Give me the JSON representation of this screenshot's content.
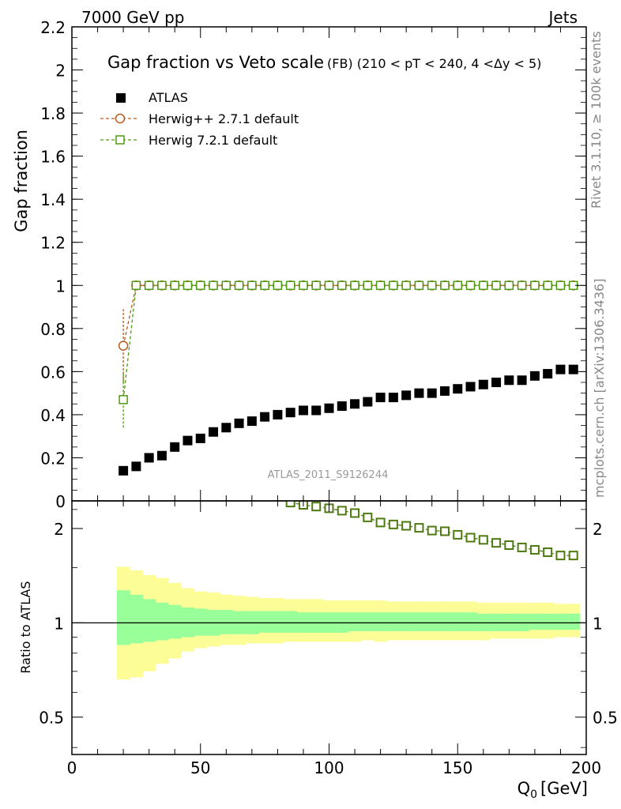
{
  "header": {
    "left": "7000 GeV pp",
    "right": "Jets"
  },
  "side_text": {
    "top": "Rivet 3.1.10, ≥ 100k events",
    "bottom": "mcplots.cern.ch [arXiv:1306.3436]"
  },
  "chart_data": [
    {
      "type": "scatter",
      "panel": "main",
      "title": "Gap fraction vs Veto scale",
      "subtitle": "(FB) (210 < pT < 240, 4 <Δy < 5)",
      "xlabel": "Q",
      "xlabel_sub": "0",
      "xlabel_unit": "[GeV]",
      "ylabel": "Gap fraction",
      "xlim": [
        0,
        200
      ],
      "ylim": [
        0,
        2.2
      ],
      "yticks": [
        0,
        0.2,
        0.4,
        0.6,
        0.8,
        1,
        1.2,
        1.4,
        1.6,
        1.8,
        2,
        2.2
      ],
      "ytick_labels": [
        "0",
        "0.2",
        "0.4",
        "0.6",
        "0.8",
        "1",
        "1.2",
        "1.4",
        "1.6",
        "1.8",
        "2",
        "2.2"
      ],
      "watermark": "ATLAS_2011_S9126244",
      "legend_position": "top-left",
      "series": [
        {
          "name": "ATLAS",
          "color": "#000000",
          "marker": "filled-square",
          "x": [
            20,
            25,
            30,
            35,
            40,
            45,
            50,
            55,
            60,
            65,
            70,
            75,
            80,
            85,
            90,
            95,
            100,
            105,
            110,
            115,
            120,
            125,
            130,
            135,
            140,
            145,
            150,
            155,
            160,
            165,
            170,
            175,
            180,
            185,
            190,
            195
          ],
          "y": [
            0.14,
            0.16,
            0.2,
            0.21,
            0.25,
            0.28,
            0.29,
            0.32,
            0.34,
            0.36,
            0.37,
            0.39,
            0.4,
            0.41,
            0.42,
            0.42,
            0.43,
            0.44,
            0.45,
            0.46,
            0.48,
            0.48,
            0.49,
            0.5,
            0.5,
            0.51,
            0.52,
            0.53,
            0.54,
            0.55,
            0.56,
            0.56,
            0.58,
            0.59,
            0.61,
            0.61
          ]
        },
        {
          "name": "Herwig++ 2.7.1 default",
          "color": "#b35a1f",
          "marker": "open-circle",
          "x": [
            20,
            25,
            30,
            35,
            40,
            45,
            50,
            55,
            60,
            65,
            70,
            75,
            80,
            85,
            90,
            95,
            100,
            105,
            110,
            115,
            120,
            125,
            130,
            135,
            140,
            145,
            150,
            155,
            160,
            165,
            170,
            175,
            180,
            185,
            190,
            195
          ],
          "y": [
            0.72,
            1,
            1,
            1,
            1,
            1,
            1,
            1,
            1,
            1,
            1,
            1,
            1,
            1,
            1,
            1,
            1,
            1,
            1,
            1,
            1,
            1,
            1,
            1,
            1,
            1,
            1,
            1,
            1,
            1,
            1,
            1,
            1,
            1,
            1,
            1
          ],
          "yerr_first": [
            0.55,
            0.89
          ]
        },
        {
          "name": "Herwig 7.2.1 default",
          "color": "#4f9a13",
          "marker": "open-square",
          "x": [
            20,
            25,
            30,
            35,
            40,
            45,
            50,
            55,
            60,
            65,
            70,
            75,
            80,
            85,
            90,
            95,
            100,
            105,
            110,
            115,
            120,
            125,
            130,
            135,
            140,
            145,
            150,
            155,
            160,
            165,
            170,
            175,
            180,
            185,
            190,
            195
          ],
          "y": [
            0.47,
            1,
            1,
            1,
            1,
            1,
            1,
            1,
            1,
            1,
            1,
            1,
            1,
            1,
            1,
            1,
            1,
            1,
            1,
            1,
            1,
            1,
            1,
            1,
            1,
            1,
            1,
            1,
            1,
            1,
            1,
            1,
            1,
            1,
            1,
            1
          ],
          "yerr_first": [
            0.34,
            0.6
          ]
        }
      ]
    },
    {
      "type": "scatter",
      "panel": "ratio",
      "ylabel": "Ratio to ATLAS",
      "yscale": "log",
      "ylim": [
        0.38,
        2.45
      ],
      "xlim": [
        0,
        200
      ],
      "xticks": [
        0,
        50,
        100,
        150,
        200
      ],
      "xtick_labels": [
        "0",
        "50",
        "100",
        "150",
        "200"
      ],
      "yticks": [
        0.5,
        1,
        2
      ],
      "ytick_labels": [
        "0.5",
        "1",
        "2"
      ],
      "bin_edges": [
        17.5,
        22.5,
        27.5,
        32.5,
        37.5,
        42.5,
        47.5,
        52.5,
        57.5,
        62.5,
        67.5,
        72.5,
        77.5,
        82.5,
        87.5,
        92.5,
        97.5,
        102.5,
        107.5,
        112.5,
        117.5,
        122.5,
        127.5,
        132.5,
        137.5,
        142.5,
        147.5,
        152.5,
        157.5,
        162.5,
        167.5,
        172.5,
        177.5,
        182.5,
        187.5,
        192.5,
        197.5
      ],
      "band_outer_low": [
        0.66,
        0.67,
        0.7,
        0.74,
        0.77,
        0.81,
        0.83,
        0.84,
        0.85,
        0.85,
        0.86,
        0.86,
        0.86,
        0.87,
        0.87,
        0.87,
        0.87,
        0.87,
        0.87,
        0.88,
        0.87,
        0.88,
        0.88,
        0.88,
        0.88,
        0.88,
        0.88,
        0.88,
        0.88,
        0.89,
        0.89,
        0.89,
        0.89,
        0.89,
        0.9,
        0.9
      ],
      "band_outer_high": [
        1.51,
        1.47,
        1.42,
        1.39,
        1.34,
        1.29,
        1.26,
        1.25,
        1.23,
        1.22,
        1.21,
        1.2,
        1.2,
        1.19,
        1.19,
        1.19,
        1.18,
        1.18,
        1.18,
        1.18,
        1.18,
        1.17,
        1.17,
        1.17,
        1.17,
        1.17,
        1.17,
        1.17,
        1.16,
        1.16,
        1.16,
        1.16,
        1.16,
        1.16,
        1.15,
        1.15
      ],
      "band_inner_low": [
        0.85,
        0.86,
        0.87,
        0.88,
        0.89,
        0.9,
        0.91,
        0.91,
        0.92,
        0.92,
        0.92,
        0.93,
        0.93,
        0.93,
        0.93,
        0.93,
        0.93,
        0.93,
        0.94,
        0.94,
        0.94,
        0.94,
        0.94,
        0.94,
        0.94,
        0.94,
        0.94,
        0.94,
        0.94,
        0.94,
        0.94,
        0.94,
        0.95,
        0.95,
        0.95,
        0.95
      ],
      "band_inner_high": [
        1.27,
        1.23,
        1.19,
        1.16,
        1.14,
        1.12,
        1.11,
        1.1,
        1.1,
        1.09,
        1.09,
        1.09,
        1.09,
        1.09,
        1.08,
        1.08,
        1.08,
        1.08,
        1.08,
        1.08,
        1.08,
        1.08,
        1.08,
        1.08,
        1.08,
        1.08,
        1.08,
        1.08,
        1.07,
        1.07,
        1.07,
        1.07,
        1.07,
        1.07,
        1.07,
        1.07
      ],
      "band_colors": {
        "outer": "#fdfd97",
        "inner": "#99ff99"
      },
      "series": [
        {
          "name": "Herwig 7.2.1 default",
          "color": "#4f7a12",
          "marker": "open-square",
          "x": [
            85,
            90,
            95,
            100,
            105,
            110,
            115,
            120,
            125,
            130,
            135,
            140,
            145,
            150,
            155,
            160,
            165,
            170,
            175,
            180,
            185,
            190,
            195
          ],
          "y": [
            2.42,
            2.38,
            2.35,
            2.32,
            2.28,
            2.24,
            2.17,
            2.09,
            2.06,
            2.04,
            2.01,
            1.97,
            1.96,
            1.91,
            1.87,
            1.84,
            1.8,
            1.77,
            1.74,
            1.71,
            1.68,
            1.64,
            1.64
          ]
        }
      ]
    }
  ]
}
